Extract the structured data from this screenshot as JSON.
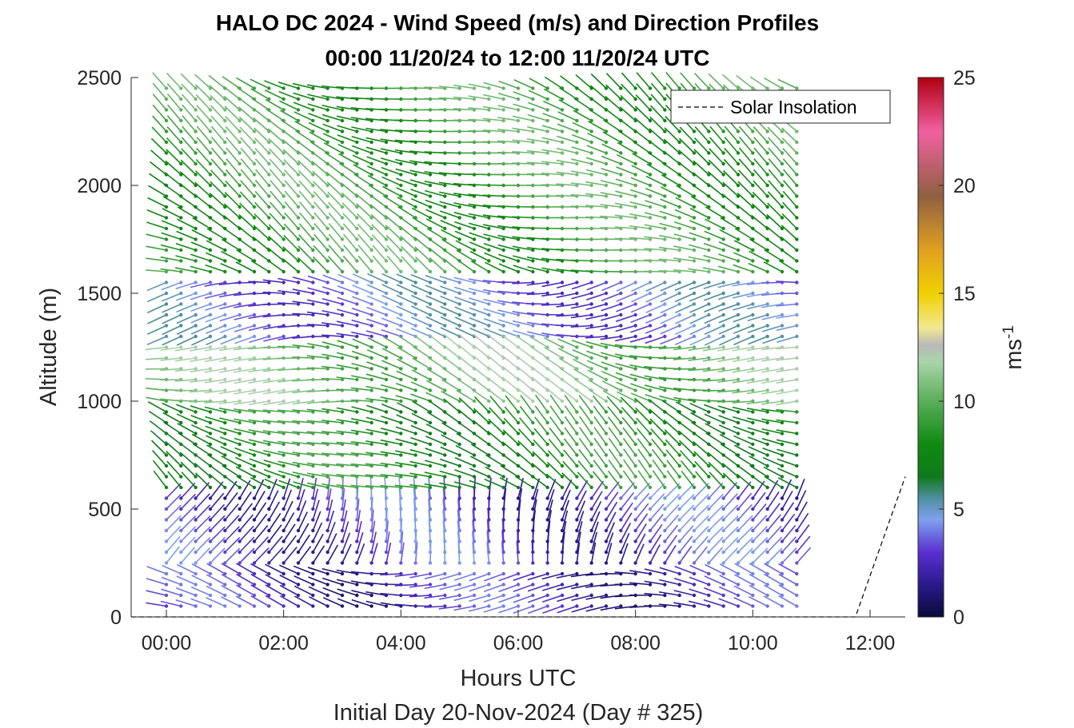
{
  "chart_data": {
    "type": "wind-barb-profile",
    "title": "HALO DC 2024 - Wind Speed (m/s) and Direction Profiles",
    "subtitle": "00:00 11/20/24 to 12:00 11/20/24  UTC",
    "xlabel": "Hours UTC",
    "xlabel2": "Initial Day 20-Nov-2024 (Day # 325)",
    "ylabel": "Altitude (m)",
    "xlim": [
      -0.6,
      12.6
    ],
    "ylim": [
      0,
      2500
    ],
    "x_ticks": [
      0,
      2,
      4,
      6,
      8,
      10,
      12
    ],
    "x_tick_labels": [
      "00:00",
      "02:00",
      "04:00",
      "06:00",
      "08:00",
      "10:00",
      "12:00"
    ],
    "y_ticks": [
      0,
      500,
      1000,
      1500,
      2000,
      2500
    ],
    "y_tick_labels": [
      "0",
      "500",
      "1000",
      "1500",
      "2000",
      "2500"
    ],
    "legend": {
      "entries": [
        "Solar Insolation"
      ],
      "placement": "top-right",
      "line_style": "dashed"
    },
    "colorbar": {
      "label": "ms",
      "label_exponent": "-1",
      "range": [
        0,
        25
      ],
      "ticks": [
        0,
        5,
        10,
        15,
        20,
        25
      ],
      "stops": [
        {
          "v": 0,
          "color": "#0a0a3c"
        },
        {
          "v": 1.5,
          "color": "#2a1a8c"
        },
        {
          "v": 3,
          "color": "#5a30d0"
        },
        {
          "v": 4.5,
          "color": "#7fa0f0"
        },
        {
          "v": 5.5,
          "color": "#4f8fa0"
        },
        {
          "v": 6.5,
          "color": "#0f7a1c"
        },
        {
          "v": 8,
          "color": "#108a10"
        },
        {
          "v": 10,
          "color": "#5aae5a"
        },
        {
          "v": 11.8,
          "color": "#a8d4a8"
        },
        {
          "v": 12.6,
          "color": "#b8b8b8"
        },
        {
          "v": 13.4,
          "color": "#f2e890"
        },
        {
          "v": 15,
          "color": "#f0d000"
        },
        {
          "v": 17,
          "color": "#e0a020"
        },
        {
          "v": 19.5,
          "color": "#906040"
        },
        {
          "v": 21,
          "color": "#c06070"
        },
        {
          "v": 22.5,
          "color": "#f060a0"
        },
        {
          "v": 25,
          "color": "#b00010"
        }
      ]
    },
    "solar_insolation": {
      "x": [
        -0.6,
        11.75,
        12.6
      ],
      "y": [
        0,
        0,
        650
      ]
    },
    "wind_profiles": {
      "time_start": 0,
      "time_end": 10.75,
      "time_step": 0.25,
      "altitude_step": 50,
      "bands": [
        {
          "z_from": 0,
          "z_to": 250,
          "speed": 2.5,
          "direction_deg": 275
        },
        {
          "z_from": 250,
          "z_to": 600,
          "speed": 3.0,
          "direction_deg": 20
        },
        {
          "z_from": 600,
          "z_to": 1000,
          "speed": 8.0,
          "direction_deg": 300
        },
        {
          "z_from": 1000,
          "z_to": 1300,
          "speed": 10.5,
          "direction_deg": 285
        },
        {
          "z_from": 1300,
          "z_to": 1600,
          "speed": 4.0,
          "direction_deg": 270
        },
        {
          "z_from": 1600,
          "z_to": 2500,
          "speed": 9.0,
          "direction_deg": 295
        }
      ]
    }
  }
}
